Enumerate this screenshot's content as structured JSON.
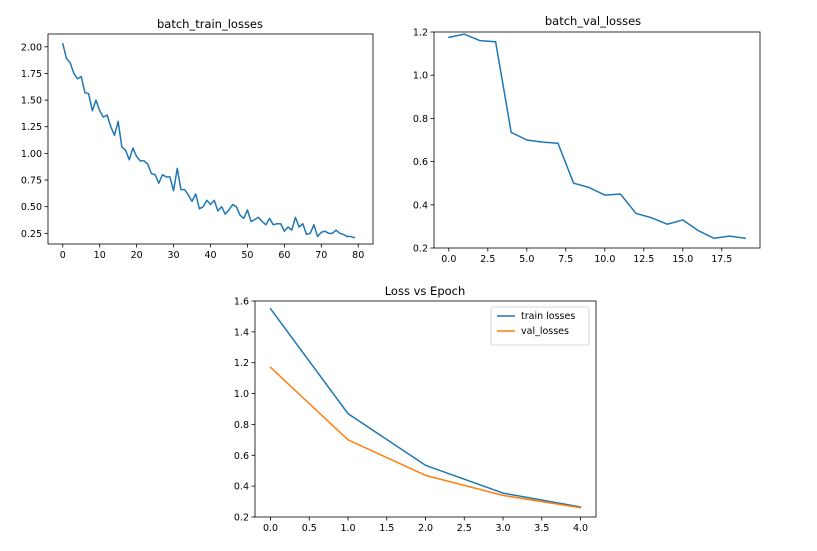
{
  "chart_data": [
    {
      "type": "line",
      "title": "batch_train_losses",
      "xlabel": "",
      "ylabel": "",
      "xlim": [
        -4,
        84
      ],
      "ylim": [
        0.15,
        2.12
      ],
      "xticks": [
        0,
        10,
        20,
        30,
        40,
        50,
        60,
        70,
        80
      ],
      "xtick_labels": [
        "0",
        "10",
        "20",
        "30",
        "40",
        "50",
        "60",
        "70",
        "80"
      ],
      "yticks": [
        0.25,
        0.5,
        0.75,
        1.0,
        1.25,
        1.5,
        1.75,
        2.0
      ],
      "ytick_labels": [
        "0.25",
        "0.50",
        "0.75",
        "1.00",
        "1.25",
        "1.50",
        "1.75",
        "2.00"
      ],
      "grid": false,
      "series": [
        {
          "color": "#1f77b4",
          "x": [
            0,
            1,
            2,
            3,
            4,
            5,
            6,
            7,
            8,
            9,
            10,
            11,
            12,
            13,
            14,
            15,
            16,
            17,
            18,
            19,
            20,
            21,
            22,
            23,
            24,
            25,
            26,
            27,
            28,
            29,
            30,
            31,
            32,
            33,
            34,
            35,
            36,
            37,
            38,
            39,
            40,
            41,
            42,
            43,
            44,
            45,
            46,
            47,
            48,
            49,
            50,
            51,
            52,
            53,
            54,
            55,
            56,
            57,
            58,
            59,
            60,
            61,
            62,
            63,
            64,
            65,
            66,
            67,
            68,
            69,
            70,
            71,
            72,
            73,
            74,
            75,
            76,
            77,
            78,
            79
          ],
          "values": [
            2.03,
            1.89,
            1.85,
            1.75,
            1.7,
            1.72,
            1.57,
            1.56,
            1.4,
            1.5,
            1.4,
            1.34,
            1.36,
            1.25,
            1.17,
            1.3,
            1.06,
            1.03,
            0.94,
            1.05,
            0.97,
            0.93,
            0.93,
            0.9,
            0.81,
            0.8,
            0.72,
            0.8,
            0.78,
            0.78,
            0.65,
            0.86,
            0.66,
            0.66,
            0.61,
            0.55,
            0.62,
            0.48,
            0.5,
            0.56,
            0.52,
            0.56,
            0.46,
            0.5,
            0.43,
            0.47,
            0.52,
            0.5,
            0.42,
            0.39,
            0.47,
            0.36,
            0.38,
            0.4,
            0.36,
            0.33,
            0.39,
            0.33,
            0.34,
            0.34,
            0.27,
            0.31,
            0.28,
            0.4,
            0.31,
            0.34,
            0.24,
            0.25,
            0.33,
            0.22,
            0.26,
            0.27,
            0.25,
            0.25,
            0.28,
            0.25,
            0.24,
            0.22,
            0.22,
            0.21
          ]
        }
      ]
    },
    {
      "type": "line",
      "title": "batch_val_losses",
      "xlabel": "",
      "ylabel": "",
      "xlim": [
        -0.95,
        19.95
      ],
      "ylim": [
        0.2,
        1.2
      ],
      "xticks": [
        0,
        2.5,
        5,
        7.5,
        10,
        12.5,
        15,
        17.5
      ],
      "xtick_labels": [
        "0.0",
        "2.5",
        "5.0",
        "7.5",
        "10.0",
        "12.5",
        "15.0",
        "17.5"
      ],
      "yticks": [
        0.2,
        0.4,
        0.6,
        0.8,
        1.0,
        1.2
      ],
      "ytick_labels": [
        "0.2",
        "0.4",
        "0.6",
        "0.8",
        "1.0",
        "1.2"
      ],
      "grid": false,
      "series": [
        {
          "color": "#1f77b4",
          "x": [
            0,
            1,
            2,
            3,
            4,
            5,
            6,
            7,
            8,
            9,
            10,
            11,
            12,
            13,
            14,
            15,
            16,
            17,
            18,
            19
          ],
          "values": [
            1.175,
            1.19,
            1.16,
            1.155,
            0.735,
            0.7,
            0.69,
            0.685,
            0.5,
            0.48,
            0.445,
            0.45,
            0.36,
            0.34,
            0.31,
            0.33,
            0.28,
            0.245,
            0.255,
            0.245
          ]
        }
      ]
    },
    {
      "type": "line",
      "title": "Loss vs Epoch",
      "xlabel": "",
      "ylabel": "",
      "xlim": [
        -0.2,
        4.2
      ],
      "ylim": [
        0.2,
        1.6
      ],
      "xticks": [
        0,
        0.5,
        1,
        1.5,
        2,
        2.5,
        3,
        3.5,
        4
      ],
      "xtick_labels": [
        "0.0",
        "0.5",
        "1.0",
        "1.5",
        "2.0",
        "2.5",
        "3.0",
        "3.5",
        "4.0"
      ],
      "yticks": [
        0.2,
        0.4,
        0.6,
        0.8,
        1.0,
        1.2,
        1.4,
        1.6
      ],
      "ytick_labels": [
        "0.2",
        "0.4",
        "0.6",
        "0.8",
        "1.0",
        "1.2",
        "1.4",
        "1.6"
      ],
      "grid": false,
      "legend": "top-right",
      "series": [
        {
          "name": "train losses",
          "color": "#1f77b4",
          "x": [
            0,
            1,
            2,
            3,
            4
          ],
          "values": [
            1.55,
            0.87,
            0.535,
            0.355,
            0.265
          ]
        },
        {
          "name": "val_losses",
          "color": "#ff7f0e",
          "x": [
            0,
            1,
            2,
            3,
            4
          ],
          "values": [
            1.17,
            0.7,
            0.47,
            0.34,
            0.26
          ]
        }
      ]
    }
  ]
}
